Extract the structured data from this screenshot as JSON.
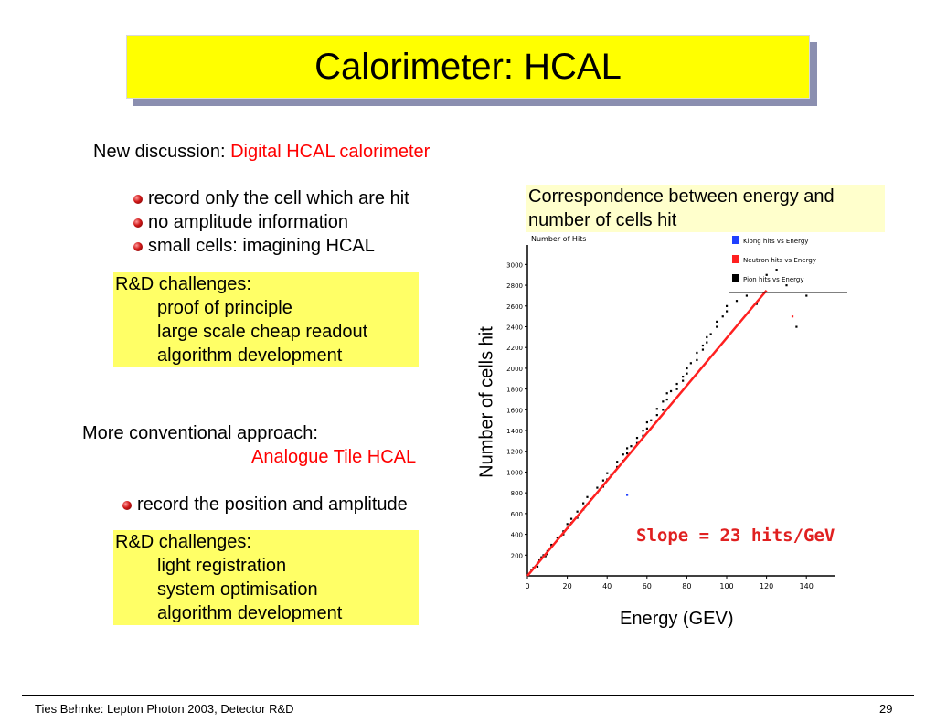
{
  "slide": {
    "title": "Calorimeter: HCAL",
    "page_number": "29",
    "footer": "Ties Behnke: Lepton Photon 2003, Detector R&D"
  },
  "section1": {
    "intro_label": "New discussion:",
    "intro_highlight": "Digital HCAL calorimeter",
    "bullets": [
      "record only the cell which are hit",
      "no amplitude information",
      "small cells: imagining HCAL"
    ],
    "rd_box": {
      "heading": "R&D challenges:",
      "items": [
        "proof of principle",
        "large scale cheap readout",
        "algorithm development"
      ]
    }
  },
  "section2": {
    "intro_label": "More conventional approach:",
    "intro_highlight": "Analogue Tile HCAL",
    "bullets": [
      "record the position and amplitude"
    ],
    "rd_box": {
      "heading": "R&D challenges:",
      "items": [
        "light registration",
        "system optimisation",
        "algorithm development"
      ]
    }
  },
  "figure": {
    "caption": "Correspondence between energy and number of cells hit",
    "colors": {
      "title_bg": "#ffff00",
      "box_bg": "#ffff66",
      "caption_bg": "#ffffcc",
      "highlight": "#ff0000",
      "fit_line": "#ff2020",
      "annotation": "#e02020"
    }
  },
  "chart_data": {
    "type": "scatter",
    "title": "",
    "xlabel": "Energy (GEV)",
    "ylabel": "Number of cells hit",
    "inner_ylabel": "Number of Hits",
    "xlim": [
      0,
      150
    ],
    "ylim": [
      0,
      3100
    ],
    "x_ticks": [
      "0",
      "20",
      "40",
      "60",
      "80",
      "100",
      "120",
      "140"
    ],
    "y_ticks": [
      "200",
      "400",
      "600",
      "800",
      "1000",
      "1200",
      "1400",
      "1600",
      "1800",
      "2000",
      "2200",
      "2400",
      "2600",
      "2800",
      "3000"
    ],
    "legend": [
      "Klong hits vs Energy",
      "Neutron hits vs Energy",
      "Pion hits vs Energy"
    ],
    "legend_colors": [
      "#2040ff",
      "#ff2020",
      "#000000"
    ],
    "legend_position": "top-right",
    "annotation": "Slope = 23 hits/GeV",
    "fit_line": {
      "x": [
        0,
        120
      ],
      "y": [
        0,
        2750
      ]
    },
    "series": [
      {
        "name": "Pion hits vs Energy",
        "color": "#000000",
        "x": [
          2,
          3,
          5,
          5,
          6,
          7,
          8,
          9,
          10,
          10,
          12,
          12,
          15,
          15,
          18,
          18,
          20,
          20,
          22,
          22,
          25,
          25,
          28,
          28,
          30,
          30,
          32,
          35,
          35,
          38,
          38,
          40,
          40,
          42,
          45,
          45,
          48,
          48,
          50,
          50,
          52,
          55,
          55,
          58,
          58,
          60,
          60,
          62,
          65,
          65,
          68,
          68,
          70,
          70,
          72,
          75,
          75,
          78,
          78,
          80,
          80,
          82,
          85,
          85,
          88,
          88,
          90,
          90,
          92,
          95,
          95,
          98,
          100,
          100,
          105,
          110,
          115,
          120,
          125,
          130,
          135,
          140
        ],
        "y": [
          60,
          80,
          120,
          90,
          150,
          180,
          200,
          190,
          240,
          210,
          280,
          300,
          340,
          370,
          400,
          430,
          460,
          500,
          510,
          550,
          560,
          620,
          640,
          700,
          690,
          760,
          740,
          800,
          850,
          860,
          920,
          930,
          990,
          970,
          1050,
          1100,
          1110,
          1170,
          1180,
          1230,
          1250,
          1280,
          1330,
          1350,
          1400,
          1420,
          1480,
          1500,
          1550,
          1610,
          1600,
          1680,
          1700,
          1760,
          1780,
          1800,
          1850,
          1880,
          1920,
          1950,
          2000,
          2050,
          2080,
          2150,
          2180,
          2220,
          2250,
          2300,
          2330,
          2400,
          2450,
          2500,
          2550,
          2600,
          2650,
          2700,
          2620,
          2900,
          2950,
          2800,
          2400,
          2700
        ]
      },
      {
        "name": "Neutron hits vs Energy",
        "color": "#ff2020",
        "x": [
          133
        ],
        "y": [
          2500
        ]
      },
      {
        "name": "Klong hits vs Energy",
        "color": "#2040ff",
        "x": [
          50
        ],
        "y": [
          780
        ]
      }
    ]
  }
}
